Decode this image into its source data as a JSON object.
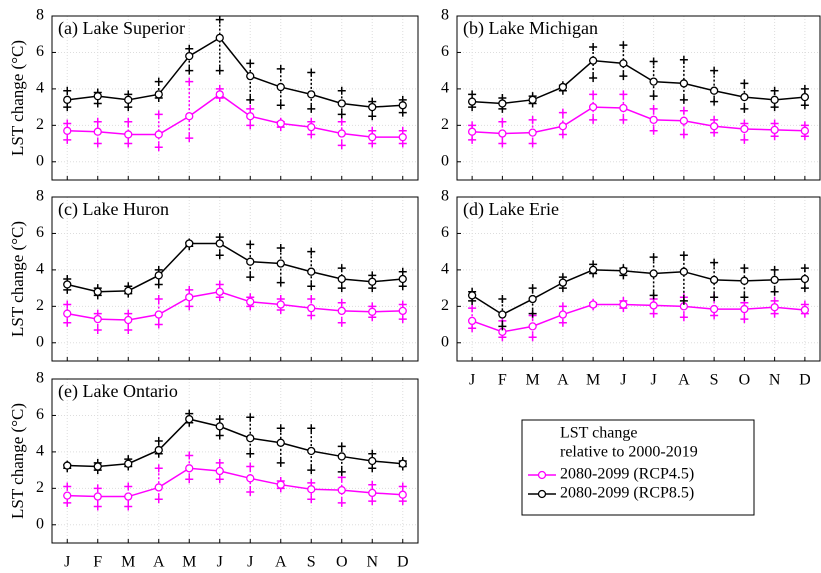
{
  "chart_data": [
    {
      "type": "line",
      "title": "(a) Lake Superior",
      "ylabel": "LST change (°C)",
      "xtick_labels": false,
      "grid": true,
      "categories": [
        "J",
        "F",
        "M",
        "A",
        "M",
        "J",
        "J",
        "A",
        "S",
        "O",
        "N",
        "D"
      ],
      "ylim": [
        -1,
        8
      ],
      "yticks": [
        0,
        2,
        4,
        6,
        8
      ],
      "series": [
        {
          "name": "2080-2099 (RCP4.5)",
          "color": "#ff00ff",
          "values": [
            1.7,
            1.65,
            1.5,
            1.5,
            2.5,
            3.7,
            2.5,
            2.1,
            1.9,
            1.55,
            1.35,
            1.35
          ],
          "low": [
            1.2,
            1.0,
            1.0,
            0.8,
            1.3,
            3.5,
            2.0,
            1.9,
            1.5,
            0.9,
            1.0,
            1.0
          ],
          "high": [
            2.1,
            2.2,
            2.2,
            2.6,
            4.4,
            4.0,
            2.9,
            2.2,
            2.2,
            2.2,
            1.7,
            1.7
          ]
        },
        {
          "name": "2080-2099 (RCP8.5)",
          "color": "#000000",
          "values": [
            3.4,
            3.6,
            3.4,
            3.7,
            5.8,
            6.8,
            4.7,
            4.1,
            3.7,
            3.2,
            3.0,
            3.1
          ],
          "low": [
            3.0,
            3.2,
            3.0,
            3.5,
            5.0,
            5.0,
            3.4,
            3.1,
            2.9,
            2.6,
            2.5,
            2.7
          ],
          "high": [
            3.9,
            3.8,
            3.7,
            4.4,
            6.2,
            7.8,
            5.4,
            5.1,
            4.9,
            3.9,
            3.3,
            3.4
          ]
        }
      ]
    },
    {
      "type": "line",
      "title": "(b) Lake Michigan",
      "xtick_labels": false,
      "grid": true,
      "categories": [
        "J",
        "F",
        "M",
        "A",
        "M",
        "J",
        "J",
        "A",
        "S",
        "O",
        "N",
        "D"
      ],
      "ylim": [
        -1,
        8
      ],
      "yticks": [
        0,
        2,
        4,
        6,
        8
      ],
      "series": [
        {
          "name": "2080-2099 (RCP4.5)",
          "color": "#ff00ff",
          "values": [
            1.65,
            1.55,
            1.6,
            1.95,
            3.0,
            2.95,
            2.3,
            2.25,
            1.95,
            1.8,
            1.75,
            1.7
          ],
          "low": [
            1.2,
            1.0,
            1.0,
            1.5,
            2.3,
            2.3,
            1.7,
            1.5,
            1.6,
            1.2,
            1.4,
            1.4
          ],
          "high": [
            2.0,
            2.2,
            2.3,
            2.7,
            3.7,
            3.7,
            2.9,
            2.8,
            2.3,
            2.1,
            2.1,
            2.0
          ]
        },
        {
          "name": "2080-2099 (RCP8.5)",
          "color": "#000000",
          "values": [
            3.3,
            3.2,
            3.4,
            4.1,
            5.55,
            5.4,
            4.4,
            4.3,
            3.9,
            3.55,
            3.4,
            3.55
          ],
          "low": [
            3.0,
            2.9,
            3.2,
            3.9,
            4.6,
            4.7,
            3.6,
            3.4,
            3.3,
            2.9,
            3.0,
            3.1
          ],
          "high": [
            3.7,
            3.5,
            3.6,
            4.2,
            6.3,
            6.4,
            5.5,
            5.6,
            5.0,
            4.3,
            3.9,
            4.0
          ]
        }
      ]
    },
    {
      "type": "line",
      "title": "(c) Lake Huron",
      "ylabel": "LST change (°C)",
      "xtick_labels": false,
      "grid": true,
      "categories": [
        "J",
        "F",
        "M",
        "A",
        "M",
        "J",
        "J",
        "A",
        "S",
        "O",
        "N",
        "D"
      ],
      "ylim": [
        -1,
        8
      ],
      "yticks": [
        0,
        2,
        4,
        6,
        8
      ],
      "series": [
        {
          "name": "2080-2099 (RCP4.5)",
          "color": "#ff00ff",
          "values": [
            1.6,
            1.3,
            1.25,
            1.55,
            2.5,
            2.8,
            2.25,
            2.1,
            1.9,
            1.75,
            1.7,
            1.75
          ],
          "low": [
            1.1,
            0.7,
            0.7,
            1.0,
            2.0,
            2.5,
            2.0,
            1.8,
            1.5,
            1.1,
            1.4,
            1.3
          ],
          "high": [
            2.1,
            1.6,
            1.6,
            2.4,
            2.9,
            3.2,
            2.5,
            2.4,
            2.4,
            2.2,
            2.0,
            2.1
          ]
        },
        {
          "name": "2080-2099 (RCP8.5)",
          "color": "#000000",
          "values": [
            3.2,
            2.8,
            2.85,
            3.7,
            5.45,
            5.45,
            4.45,
            4.35,
            3.9,
            3.5,
            3.35,
            3.5
          ],
          "low": [
            2.9,
            2.6,
            2.7,
            3.2,
            5.3,
            4.8,
            3.6,
            3.3,
            3.1,
            3.0,
            3.0,
            3.1
          ],
          "high": [
            3.5,
            3.0,
            3.1,
            4.0,
            5.5,
            5.8,
            5.4,
            5.2,
            5.0,
            4.1,
            3.7,
            3.9
          ]
        }
      ]
    },
    {
      "type": "line",
      "title": "(d) Lake Erie",
      "xtick_labels": true,
      "grid": true,
      "categories": [
        "J",
        "F",
        "M",
        "A",
        "M",
        "J",
        "J",
        "A",
        "S",
        "O",
        "N",
        "D"
      ],
      "ylim": [
        -1,
        8
      ],
      "yticks": [
        0,
        2,
        4,
        6,
        8
      ],
      "series": [
        {
          "name": "2080-2099 (RCP4.5)",
          "color": "#ff00ff",
          "values": [
            1.2,
            0.6,
            0.9,
            1.55,
            2.1,
            2.1,
            2.05,
            2.0,
            1.85,
            1.85,
            1.95,
            1.8
          ],
          "low": [
            0.8,
            0.3,
            0.3,
            1.1,
            2.0,
            1.9,
            1.6,
            1.4,
            1.5,
            1.3,
            1.6,
            1.6
          ],
          "high": [
            1.9,
            1.2,
            1.5,
            2.0,
            2.2,
            2.3,
            2.4,
            2.5,
            2.5,
            2.2,
            2.3,
            2.1
          ]
        },
        {
          "name": "2080-2099 (RCP8.5)",
          "color": "#000000",
          "values": [
            2.6,
            1.55,
            2.4,
            3.3,
            4.0,
            3.95,
            3.8,
            3.9,
            3.45,
            3.4,
            3.45,
            3.5
          ],
          "low": [
            2.3,
            0.9,
            1.6,
            3.0,
            3.8,
            3.7,
            2.6,
            2.3,
            2.5,
            2.5,
            2.8,
            3.0
          ],
          "high": [
            2.8,
            2.4,
            3.0,
            3.6,
            4.3,
            4.1,
            4.7,
            4.8,
            4.4,
            4.1,
            4.0,
            4.1
          ]
        }
      ]
    },
    {
      "type": "line",
      "title": "(e) Lake Ontario",
      "ylabel": "LST change (°C)",
      "xtick_labels": true,
      "grid": true,
      "categories": [
        "J",
        "F",
        "M",
        "A",
        "M",
        "J",
        "J",
        "A",
        "S",
        "O",
        "N",
        "D"
      ],
      "ylim": [
        -1,
        8
      ],
      "yticks": [
        0,
        2,
        4,
        6,
        8
      ],
      "series": [
        {
          "name": "2080-2099 (RCP4.5)",
          "color": "#ff00ff",
          "values": [
            1.6,
            1.55,
            1.55,
            2.05,
            3.1,
            2.95,
            2.55,
            2.2,
            1.95,
            1.9,
            1.75,
            1.65
          ],
          "low": [
            1.2,
            1.0,
            1.0,
            1.4,
            2.5,
            2.5,
            1.8,
            2.0,
            1.4,
            1.2,
            1.3,
            1.3
          ],
          "high": [
            2.1,
            2.0,
            2.1,
            3.1,
            3.8,
            3.4,
            3.2,
            2.4,
            2.3,
            2.6,
            2.2,
            2.1
          ]
        },
        {
          "name": "2080-2099 (RCP8.5)",
          "color": "#000000",
          "values": [
            3.25,
            3.2,
            3.35,
            4.1,
            5.8,
            5.4,
            4.75,
            4.5,
            4.05,
            3.75,
            3.5,
            3.35
          ],
          "low": [
            3.1,
            3.0,
            3.2,
            3.9,
            5.6,
            4.9,
            3.9,
            3.4,
            3.0,
            2.9,
            3.1,
            3.2
          ],
          "high": [
            3.3,
            3.4,
            3.6,
            4.6,
            6.1,
            5.8,
            5.9,
            5.3,
            5.3,
            4.3,
            3.9,
            3.5
          ]
        }
      ]
    }
  ],
  "legend": {
    "title": [
      "LST change",
      "relative to 2000-2019"
    ]
  }
}
